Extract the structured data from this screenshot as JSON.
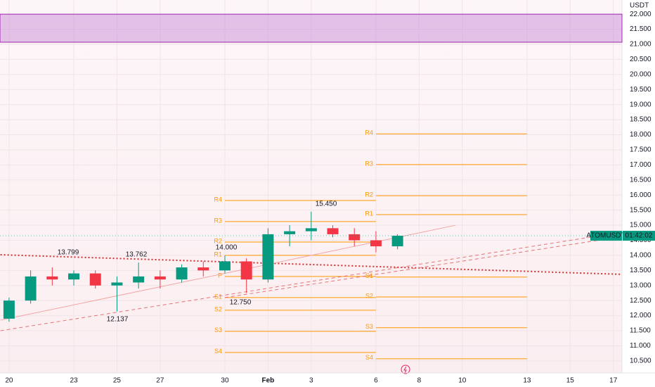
{
  "chart_data": {
    "type": "candlestick",
    "y_axis_label": "USDT",
    "x": [
      0,
      1,
      2,
      3,
      4,
      5,
      6,
      7,
      8,
      9,
      10,
      11,
      12,
      13,
      14,
      15,
      16,
      17,
      18
    ],
    "open": [
      11.9,
      12.5,
      13.3,
      13.2,
      13.4,
      13.0,
      13.1,
      13.3,
      13.2,
      13.6,
      13.5,
      13.8,
      13.2,
      14.7,
      14.8,
      14.9,
      14.7,
      14.5,
      14.3
    ],
    "high": [
      12.6,
      13.5,
      13.6,
      13.5,
      13.5,
      13.3,
      13.762,
      13.5,
      13.7,
      13.8,
      14.0,
      13.9,
      14.9,
      15.0,
      15.45,
      15.0,
      14.9,
      14.8,
      14.7
    ],
    "low": [
      11.8,
      12.4,
      13.0,
      13.0,
      12.9,
      12.137,
      12.9,
      12.9,
      13.1,
      13.3,
      13.4,
      12.75,
      13.1,
      14.3,
      14.5,
      14.6,
      14.3,
      14.1,
      14.2
    ],
    "close": [
      12.5,
      13.3,
      13.2,
      13.4,
      13.0,
      13.1,
      13.3,
      13.2,
      13.6,
      13.5,
      13.8,
      13.2,
      14.7,
      14.8,
      14.9,
      14.7,
      14.5,
      14.3,
      14.65
    ],
    "up_color": "#089981",
    "down_color": "#f23645",
    "xlim": [
      -0.42,
      28.4
    ],
    "xticks": [
      {
        "value": 0,
        "label": "20"
      },
      {
        "value": 3,
        "label": "23"
      },
      {
        "value": 5,
        "label": "25"
      },
      {
        "value": 7,
        "label": "27"
      },
      {
        "value": 10,
        "label": "30"
      },
      {
        "value": 12,
        "label": "Feb"
      },
      {
        "value": 14,
        "label": "3"
      },
      {
        "value": 17,
        "label": "6"
      },
      {
        "value": 19,
        "label": "8"
      },
      {
        "value": 21,
        "label": "10"
      },
      {
        "value": 24,
        "label": "13"
      },
      {
        "value": 26,
        "label": "15"
      },
      {
        "value": 28,
        "label": "17"
      }
    ],
    "ylim": [
      10.1,
      22.47
    ],
    "yticks": [
      {
        "value": 10.5,
        "label": "10.500"
      },
      {
        "value": 11,
        "label": "11.000"
      },
      {
        "value": 11.5,
        "label": "11.500"
      },
      {
        "value": 12,
        "label": "12.000"
      },
      {
        "value": 12.5,
        "label": "12.500"
      },
      {
        "value": 13,
        "label": "13.000"
      },
      {
        "value": 13.5,
        "label": "13.500"
      },
      {
        "value": 14,
        "label": "14.000"
      },
      {
        "value": 14.5,
        "label": "14.500"
      },
      {
        "value": 15,
        "label": "15.000"
      },
      {
        "value": 15.5,
        "label": "15.500"
      },
      {
        "value": 16,
        "label": "16.000"
      },
      {
        "value": 16.5,
        "label": "16.500"
      },
      {
        "value": 17,
        "label": "17.000"
      },
      {
        "value": 17.5,
        "label": "17.500"
      },
      {
        "value": 18,
        "label": "18.000"
      },
      {
        "value": 18.5,
        "label": "18.500"
      },
      {
        "value": 19,
        "label": "19.000"
      },
      {
        "value": 19.5,
        "label": "19.500"
      },
      {
        "value": 20,
        "label": "20.000"
      },
      {
        "value": 20.5,
        "label": "20.500"
      },
      {
        "value": 21,
        "label": "21.000"
      },
      {
        "value": 21.5,
        "label": "21.500"
      },
      {
        "value": 22,
        "label": "22.000"
      }
    ],
    "grid": true,
    "zone": {
      "range": [
        21.07,
        22.0
      ],
      "color": "#ce93d8"
    },
    "pivot_color": "#ff9800",
    "pivots": [
      {
        "x": [
          10,
          17
        ],
        "levels": [
          {
            "label": "R4",
            "value": 15.82
          },
          {
            "label": "R3",
            "value": 15.12
          },
          {
            "label": "R2",
            "value": 14.44
          },
          {
            "label": "R1",
            "value": 14.0
          },
          {
            "label": "P",
            "value": 13.3
          },
          {
            "label": "S1",
            "value": 12.6
          },
          {
            "label": "S2",
            "value": 12.18
          },
          {
            "label": "S3",
            "value": 11.48
          },
          {
            "label": "S4",
            "value": 10.78
          }
        ]
      },
      {
        "x": [
          17,
          24
        ],
        "levels": [
          {
            "label": "R4",
            "value": 18.03
          },
          {
            "label": "R3",
            "value": 17.01
          },
          {
            "label": "R2",
            "value": 15.98
          },
          {
            "label": "R1",
            "value": 15.35
          },
          {
            "label": "S1",
            "value": 13.28
          },
          {
            "label": "S2",
            "value": 12.62
          },
          {
            "label": "S3",
            "value": 11.6
          },
          {
            "label": "S4",
            "value": 10.57
          }
        ]
      }
    ],
    "trendlines": [
      {
        "x": [
          -0.4,
          28.4
        ],
        "y": [
          14.02,
          13.37
        ],
        "color": "#d32f2f",
        "style": "dotted"
      },
      {
        "x": [
          -0.4,
          28.4
        ],
        "y": [
          11.5,
          14.77
        ],
        "color": "#e57373",
        "style": "dashed"
      },
      {
        "x": [
          10,
          28.4
        ],
        "y": [
          12.6,
          14.62
        ],
        "color": "#e57373",
        "style": "dashed"
      },
      {
        "x": [
          -0.4,
          20.7
        ],
        "y": [
          11.85,
          15.0
        ],
        "color": "#f4a6a6",
        "style": "solid"
      }
    ],
    "annotations": [
      "13.799",
      "13.762",
      "12.137",
      "14.000",
      "12.750",
      "15.450"
    ],
    "last_price": {
      "value": 14.65,
      "symbol": "ATOMUSDT",
      "countdown": "01:42:02",
      "color": "#089981"
    }
  }
}
